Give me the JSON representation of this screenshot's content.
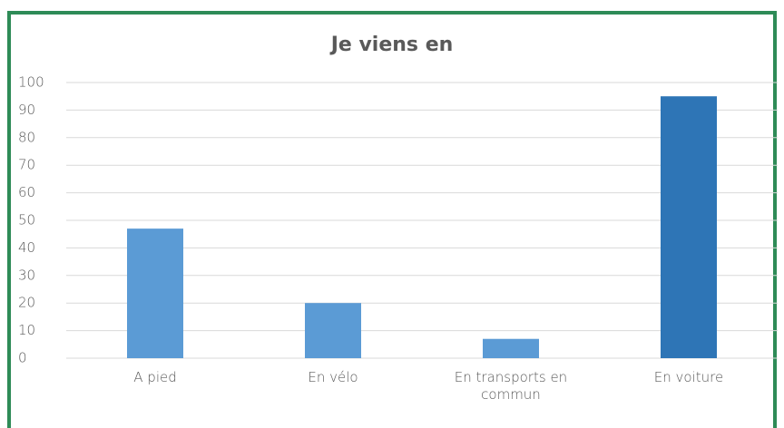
{
  "chart_data": {
    "type": "bar",
    "title": "Je viens en",
    "categories": [
      "A pied",
      "En vélo",
      "En transports en commun",
      "En voiture"
    ],
    "values": [
      47,
      20,
      7,
      95
    ],
    "colors": [
      "#5b9bd5",
      "#5b9bd5",
      "#5b9bd5",
      "#2e75b6"
    ],
    "ylim": [
      0,
      100
    ],
    "yticks": [
      0,
      10,
      20,
      30,
      40,
      50,
      60,
      70,
      80,
      90,
      100
    ],
    "grid": true
  }
}
